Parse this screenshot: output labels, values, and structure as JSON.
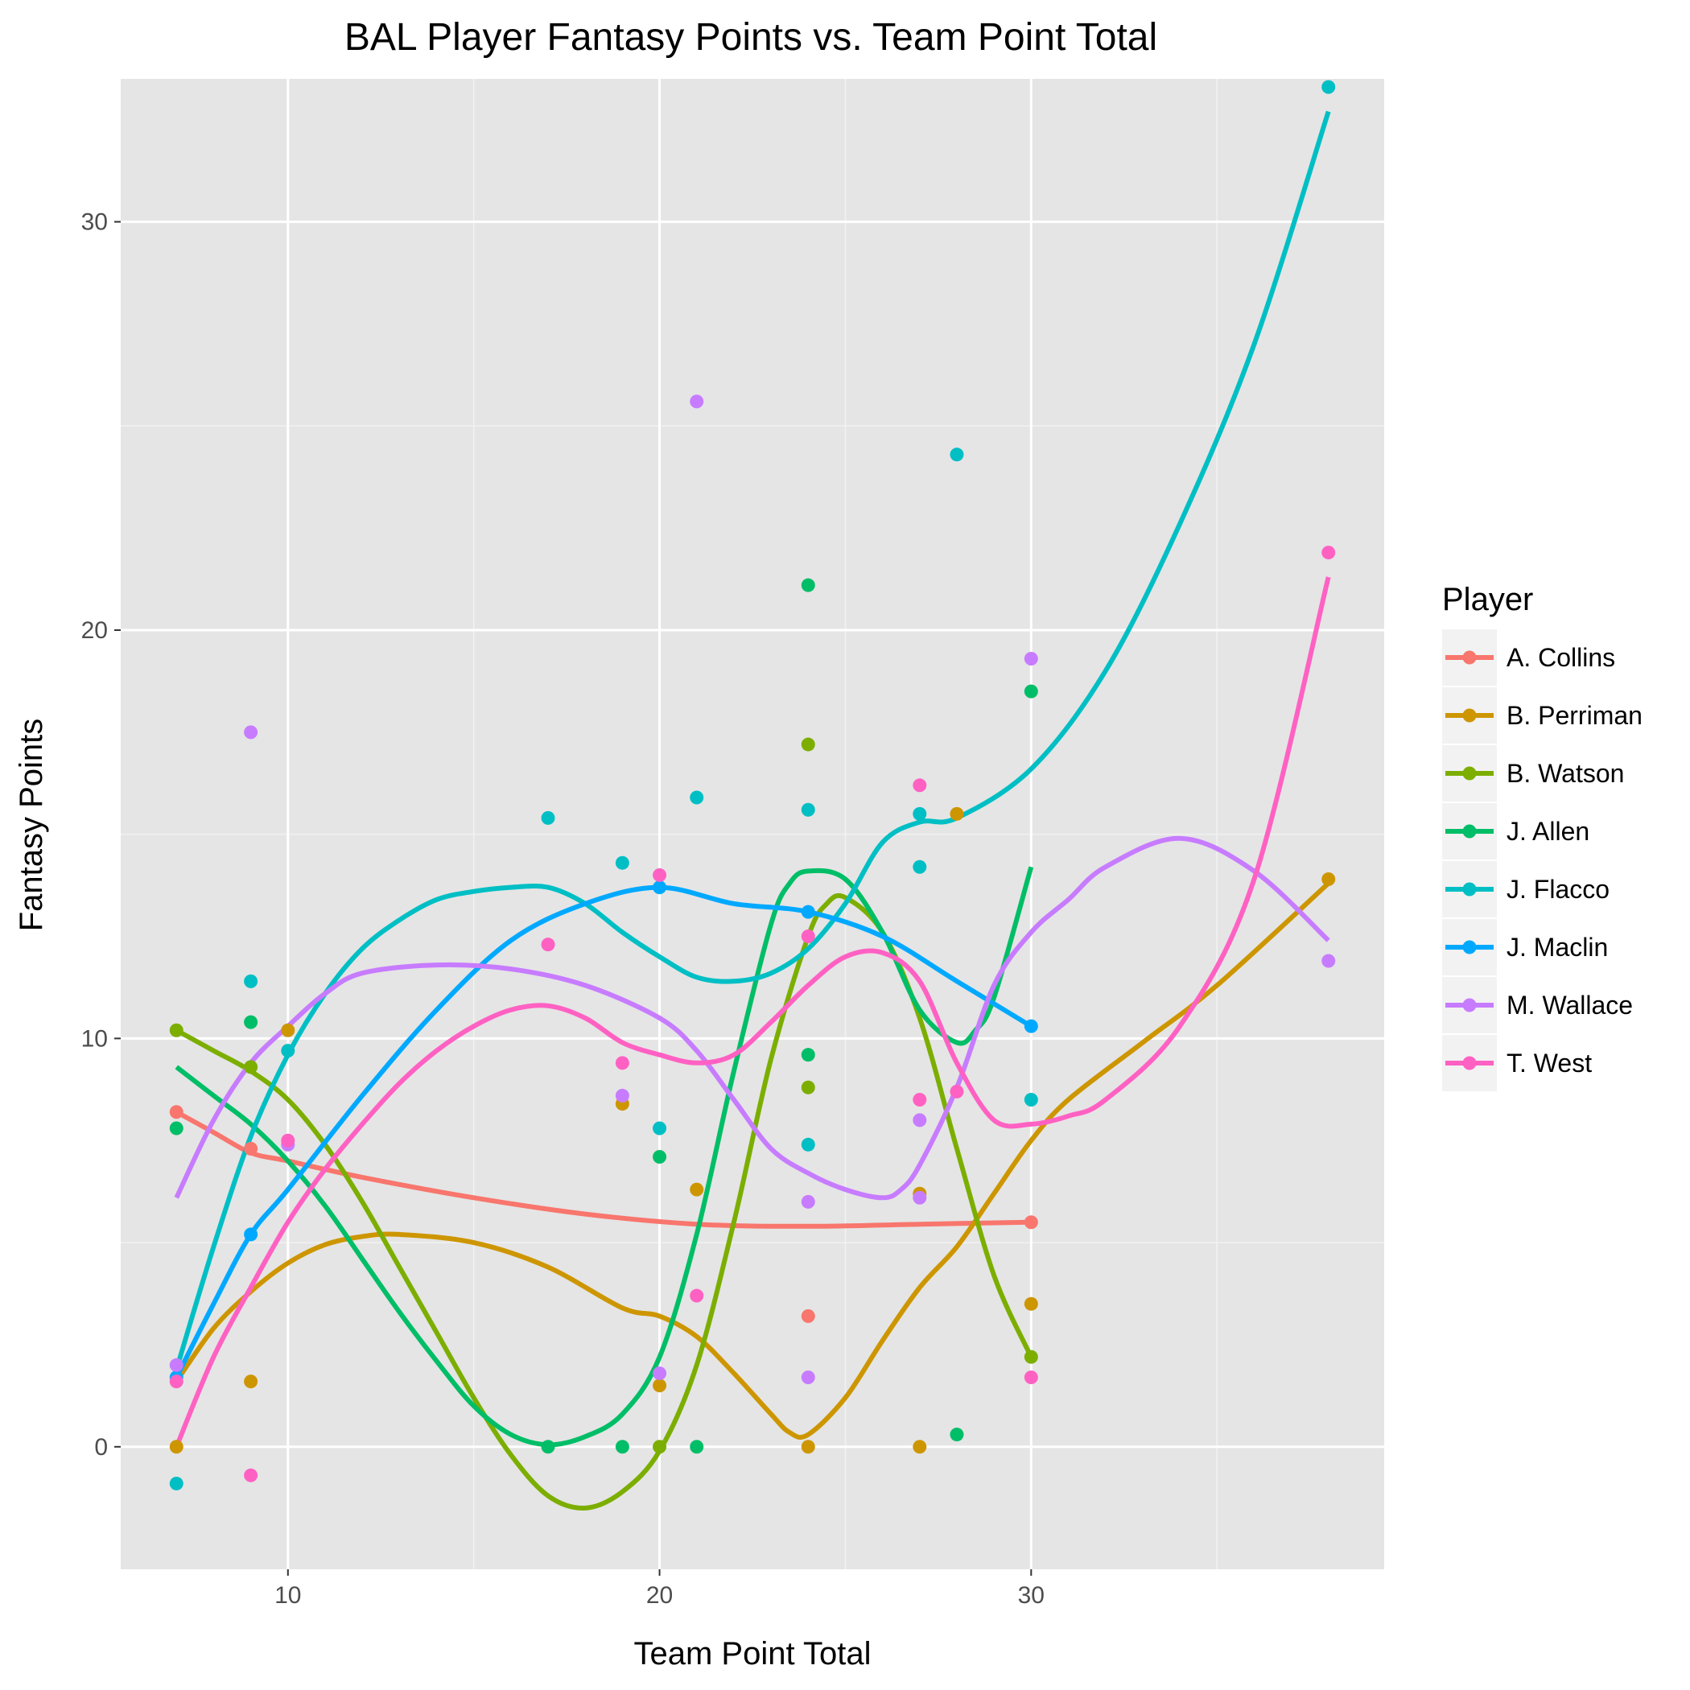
{
  "chart_data": {
    "type": "scatter",
    "title": "BAL Player Fantasy Points vs. Team Point Total",
    "xlabel": "Team Point Total",
    "ylabel": "Fantasy Points",
    "xlim": [
      5.5,
      39.5
    ],
    "ylim": [
      -3,
      33.5
    ],
    "x_ticks": [
      10,
      20,
      30
    ],
    "y_ticks": [
      0,
      10,
      20,
      30
    ],
    "x_tick_labels": [
      "10",
      "20",
      "30"
    ],
    "y_tick_labels": [
      "0",
      "10",
      "20",
      "30"
    ],
    "grid": true,
    "panel_background": "#E5E5E5",
    "legend": {
      "title": "Player",
      "position": "right"
    },
    "series": [
      {
        "name": "A. Collins",
        "color": "#F8766D",
        "points": [
          [
            7,
            8.2
          ],
          [
            9,
            7.3
          ],
          [
            24,
            3.2
          ],
          [
            30,
            5.5
          ]
        ],
        "smooth": [
          [
            7,
            8.2
          ],
          [
            8,
            7.7
          ],
          [
            9,
            7.2
          ],
          [
            10,
            7.0
          ],
          [
            12,
            6.6
          ],
          [
            15,
            6.1
          ],
          [
            18,
            5.7
          ],
          [
            21,
            5.45
          ],
          [
            24,
            5.4
          ],
          [
            27,
            5.45
          ],
          [
            30,
            5.5
          ]
        ]
      },
      {
        "name": "B. Perriman",
        "color": "#CD9600",
        "points": [
          [
            7,
            0
          ],
          [
            9,
            1.6
          ],
          [
            10,
            10.2
          ],
          [
            19,
            8.4
          ],
          [
            20,
            1.5
          ],
          [
            21,
            6.3
          ],
          [
            24,
            0
          ],
          [
            27,
            0
          ],
          [
            27,
            6.2
          ],
          [
            28,
            15.5
          ],
          [
            30,
            3.5
          ],
          [
            38,
            13.9
          ]
        ],
        "smooth": [
          [
            7,
            1.6
          ],
          [
            8,
            2.9
          ],
          [
            9,
            3.8
          ],
          [
            10,
            4.5
          ],
          [
            11,
            4.95
          ],
          [
            12,
            5.15
          ],
          [
            13,
            5.2
          ],
          [
            15,
            5.0
          ],
          [
            17,
            4.4
          ],
          [
            19,
            3.4
          ],
          [
            20,
            3.2
          ],
          [
            21,
            2.7
          ],
          [
            22,
            1.8
          ],
          [
            23,
            0.8
          ],
          [
            23.5,
            0.35
          ],
          [
            24,
            0.3
          ],
          [
            25,
            1.2
          ],
          [
            26,
            2.6
          ],
          [
            27,
            3.9
          ],
          [
            28,
            4.9
          ],
          [
            29,
            6.2
          ],
          [
            30,
            7.5
          ],
          [
            31,
            8.5
          ],
          [
            33,
            9.9
          ],
          [
            35,
            11.3
          ],
          [
            38,
            13.8
          ]
        ]
      },
      {
        "name": "B. Watson",
        "color": "#7CAE00",
        "points": [
          [
            7,
            10.2
          ],
          [
            9,
            9.3
          ],
          [
            20,
            0
          ],
          [
            24,
            17.2
          ],
          [
            24,
            8.8
          ],
          [
            30,
            2.2
          ]
        ],
        "smooth": [
          [
            7,
            10.2
          ],
          [
            8,
            9.7
          ],
          [
            9,
            9.2
          ],
          [
            10,
            8.5
          ],
          [
            11,
            7.4
          ],
          [
            12,
            6.0
          ],
          [
            13,
            4.4
          ],
          [
            14,
            2.8
          ],
          [
            15,
            1.2
          ],
          [
            16,
            -0.2
          ],
          [
            17,
            -1.2
          ],
          [
            18,
            -1.5
          ],
          [
            19,
            -1.1
          ],
          [
            20,
            -0.1
          ],
          [
            21,
            2.0
          ],
          [
            22,
            5.5
          ],
          [
            23,
            9.5
          ],
          [
            24,
            12.5
          ],
          [
            24.5,
            13.3
          ],
          [
            25,
            13.45
          ],
          [
            26,
            12.6
          ],
          [
            27,
            10.5
          ],
          [
            28,
            7.3
          ],
          [
            29,
            4.2
          ],
          [
            30,
            2.2
          ]
        ]
      },
      {
        "name": "J. Allen",
        "color": "#00BE67",
        "points": [
          [
            7,
            7.8
          ],
          [
            9,
            10.4
          ],
          [
            17,
            0
          ],
          [
            19,
            0
          ],
          [
            20,
            7.1
          ],
          [
            21,
            0
          ],
          [
            24,
            21.1
          ],
          [
            24,
            9.6
          ],
          [
            28,
            0.3
          ],
          [
            30,
            18.5
          ]
        ],
        "smooth": [
          [
            7,
            9.3
          ],
          [
            8,
            8.6
          ],
          [
            9,
            7.9
          ],
          [
            10,
            7.0
          ],
          [
            11,
            5.9
          ],
          [
            12,
            4.6
          ],
          [
            13,
            3.3
          ],
          [
            14,
            2.1
          ],
          [
            15,
            1.0
          ],
          [
            16,
            0.3
          ],
          [
            17,
            0.05
          ],
          [
            18,
            0.25
          ],
          [
            19,
            0.8
          ],
          [
            20,
            2.2
          ],
          [
            21,
            5.2
          ],
          [
            22,
            9.2
          ],
          [
            23,
            12.8
          ],
          [
            23.5,
            13.8
          ],
          [
            24,
            14.1
          ],
          [
            25,
            13.9
          ],
          [
            26,
            12.6
          ],
          [
            27,
            10.7
          ],
          [
            28,
            9.9
          ],
          [
            28.5,
            10.2
          ],
          [
            29,
            11.0
          ],
          [
            30,
            14.2
          ]
        ]
      },
      {
        "name": "J. Flacco",
        "color": "#00BFC4",
        "points": [
          [
            7,
            -0.9
          ],
          [
            9,
            11.4
          ],
          [
            10,
            9.7
          ],
          [
            17,
            15.4
          ],
          [
            19,
            14.3
          ],
          [
            20,
            7.8
          ],
          [
            21,
            15.9
          ],
          [
            24,
            15.6
          ],
          [
            24,
            7.4
          ],
          [
            27,
            15.5
          ],
          [
            27,
            14.2
          ],
          [
            28,
            24.3
          ],
          [
            30,
            8.5
          ],
          [
            38,
            33.3
          ]
        ],
        "smooth": [
          [
            7,
            1.9
          ],
          [
            8,
            4.9
          ],
          [
            9,
            7.6
          ],
          [
            10,
            9.6
          ],
          [
            11,
            11.1
          ],
          [
            12,
            12.2
          ],
          [
            13,
            12.9
          ],
          [
            14,
            13.4
          ],
          [
            15,
            13.6
          ],
          [
            16,
            13.7
          ],
          [
            17,
            13.7
          ],
          [
            18,
            13.3
          ],
          [
            19,
            12.6
          ],
          [
            20,
            12.0
          ],
          [
            21,
            11.5
          ],
          [
            22,
            11.4
          ],
          [
            23,
            11.6
          ],
          [
            24,
            12.2
          ],
          [
            25,
            13.3
          ],
          [
            26,
            14.8
          ],
          [
            27,
            15.3
          ],
          [
            28,
            15.4
          ],
          [
            30,
            16.6
          ],
          [
            32,
            19.0
          ],
          [
            34,
            22.6
          ],
          [
            36,
            27.0
          ],
          [
            38,
            32.7
          ]
        ]
      },
      {
        "name": "J. Maclin",
        "color": "#00A9FF",
        "points": [
          [
            7,
            1.7
          ],
          [
            9,
            5.2
          ],
          [
            20,
            13.7
          ],
          [
            24,
            13.1
          ],
          [
            30,
            10.3
          ]
        ],
        "smooth": [
          [
            7,
            1.7
          ],
          [
            8,
            3.5
          ],
          [
            9,
            5.2
          ],
          [
            10,
            6.3
          ],
          [
            12,
            8.6
          ],
          [
            14,
            10.7
          ],
          [
            16,
            12.4
          ],
          [
            18,
            13.3
          ],
          [
            20,
            13.7
          ],
          [
            22,
            13.3
          ],
          [
            24,
            13.1
          ],
          [
            26,
            12.5
          ],
          [
            28,
            11.4
          ],
          [
            30,
            10.3
          ]
        ]
      },
      {
        "name": "M. Wallace",
        "color": "#C77CFF",
        "points": [
          [
            7,
            2.0
          ],
          [
            9,
            17.5
          ],
          [
            10,
            7.4
          ],
          [
            19,
            8.6
          ],
          [
            20,
            1.8
          ],
          [
            21,
            25.6
          ],
          [
            24,
            6.0
          ],
          [
            24,
            1.7
          ],
          [
            27,
            8.0
          ],
          [
            27,
            6.1
          ],
          [
            30,
            19.3
          ],
          [
            38,
            11.9
          ]
        ],
        "smooth": [
          [
            7,
            6.1
          ],
          [
            8,
            8.0
          ],
          [
            9,
            9.4
          ],
          [
            10,
            10.3
          ],
          [
            11,
            11.1
          ],
          [
            12,
            11.6
          ],
          [
            14,
            11.8
          ],
          [
            16,
            11.7
          ],
          [
            18,
            11.3
          ],
          [
            20,
            10.5
          ],
          [
            21,
            9.7
          ],
          [
            22,
            8.5
          ],
          [
            23,
            7.3
          ],
          [
            24,
            6.7
          ],
          [
            25,
            6.3
          ],
          [
            26,
            6.1
          ],
          [
            26.5,
            6.3
          ],
          [
            27,
            6.9
          ],
          [
            28,
            8.8
          ],
          [
            29,
            11.3
          ],
          [
            30,
            12.6
          ],
          [
            31,
            13.4
          ],
          [
            32,
            14.2
          ],
          [
            34,
            14.9
          ],
          [
            36,
            14.1
          ],
          [
            38,
            12.4
          ]
        ]
      },
      {
        "name": "T. West",
        "color": "#FF61C3",
        "points": [
          [
            7,
            1.6
          ],
          [
            9,
            -0.7
          ],
          [
            10,
            7.5
          ],
          [
            17,
            12.3
          ],
          [
            19,
            9.4
          ],
          [
            20,
            14.0
          ],
          [
            21,
            3.7
          ],
          [
            24,
            12.5
          ],
          [
            27,
            16.2
          ],
          [
            27,
            8.5
          ],
          [
            28,
            8.7
          ],
          [
            30,
            1.7
          ],
          [
            38,
            21.9
          ]
        ],
        "smooth": [
          [
            7,
            0.0
          ],
          [
            8,
            2.2
          ],
          [
            9,
            3.9
          ],
          [
            10,
            5.5
          ],
          [
            11,
            6.8
          ],
          [
            12,
            7.9
          ],
          [
            13,
            8.9
          ],
          [
            14,
            9.7
          ],
          [
            15,
            10.3
          ],
          [
            16,
            10.7
          ],
          [
            17,
            10.8
          ],
          [
            18,
            10.5
          ],
          [
            19,
            9.9
          ],
          [
            20,
            9.6
          ],
          [
            21,
            9.4
          ],
          [
            22,
            9.6
          ],
          [
            23,
            10.4
          ],
          [
            24,
            11.3
          ],
          [
            25,
            12.0
          ],
          [
            26,
            12.1
          ],
          [
            27,
            11.4
          ],
          [
            28,
            9.4
          ],
          [
            29,
            8.0
          ],
          [
            30,
            7.9
          ],
          [
            31,
            8.1
          ],
          [
            32,
            8.5
          ],
          [
            34,
            10.3
          ],
          [
            36,
            13.9
          ],
          [
            38,
            21.3
          ]
        ]
      }
    ]
  }
}
